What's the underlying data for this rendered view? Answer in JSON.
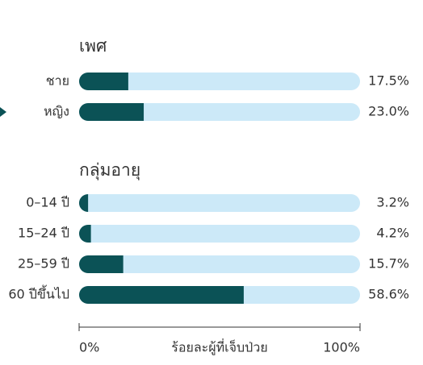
{
  "chart_data": {
    "type": "bar",
    "orientation": "horizontal",
    "groups": [
      {
        "title": "เพศ",
        "categories": [
          "ชาย",
          "หญิง"
        ],
        "values": [
          17.5,
          23.0
        ],
        "value_labels": [
          "17.5%",
          "23.0%"
        ]
      },
      {
        "title": "กลุ่มอายุ",
        "categories": [
          "0–14 ปี",
          "15–24 ปี",
          "25–59 ปี",
          "60 ปีขึ้นไป"
        ],
        "values": [
          3.2,
          4.2,
          15.7,
          58.6
        ],
        "value_labels": [
          "3.2%",
          "4.2%",
          "15.7%",
          "58.6%"
        ]
      }
    ],
    "color": "#0b5256",
    "track_color": "#cce9f8",
    "xlim": [
      0,
      100
    ],
    "xticks": [
      {
        "value": 0,
        "label": "0%"
      },
      {
        "value": 100,
        "label": "100%"
      }
    ],
    "xlabel": "ร้อยละผู้ที่เจ็บป่วย"
  }
}
